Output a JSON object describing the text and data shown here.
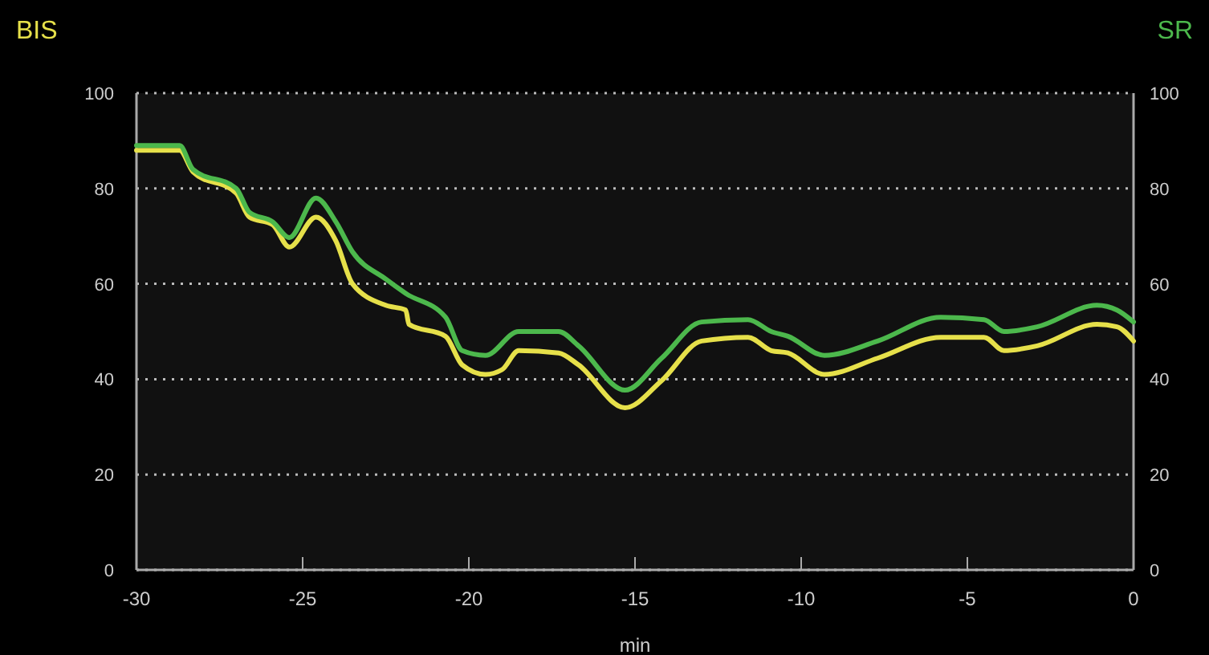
{
  "chart_data": {
    "type": "line",
    "ylabel": "BIS",
    "y2label": "SR",
    "xlabel": "min",
    "xlim": [
      -30,
      0
    ],
    "xticks": [
      -30,
      -25,
      -20,
      -15,
      -10,
      -5,
      0
    ],
    "ylim": [
      0,
      100
    ],
    "yticks": [
      0,
      20,
      40,
      60,
      80,
      100
    ],
    "y2lim": [
      0,
      100
    ],
    "y2ticks": [
      0,
      20,
      40,
      60,
      80,
      100
    ],
    "grid": "y",
    "line_style": "solid",
    "series": [
      {
        "color": "#e6e04a",
        "x": [
          -30,
          -28.7,
          -28.3,
          -27,
          -26.6,
          -25.9,
          -25.4,
          -24.6,
          -24,
          -23.5,
          -22.5,
          -21.9,
          -21.8,
          -20.7,
          -20.2,
          -19.5,
          -19,
          -18.5,
          -17.3,
          -16.7,
          -15.3,
          -14.2,
          -13,
          -11.6,
          -10.9,
          -10.4,
          -9.3,
          -7.7,
          -5.8,
          -4.5,
          -3.9,
          -2.9,
          -1.1,
          -0.5,
          0
        ],
        "values": [
          88,
          88,
          83.5,
          79,
          74,
          72.4,
          67.7,
          74,
          69,
          60,
          55.5,
          54.5,
          51.5,
          49,
          43,
          41,
          42,
          46,
          45.5,
          43,
          34,
          39.7,
          48,
          48.8,
          46,
          45.5,
          41,
          44.4,
          48.8,
          48.8,
          46,
          47,
          51.5,
          51,
          48
        ]
      },
      {
        "color": "#4cb84c",
        "axis": "y2",
        "x": [
          -30,
          -28.7,
          -28.3,
          -27,
          -26.6,
          -25.9,
          -25.4,
          -24.6,
          -24,
          -23.5,
          -22.5,
          -21.9,
          -20.7,
          -20.2,
          -19.5,
          -18.5,
          -17.3,
          -16.7,
          -15.3,
          -14.2,
          -13,
          -11.6,
          -10.9,
          -10.4,
          -9.3,
          -7.7,
          -5.8,
          -4.5,
          -3.9,
          -2.9,
          -1.1,
          -0.5,
          0
        ],
        "values": [
          89,
          89,
          84,
          80,
          75,
          73,
          69.7,
          78,
          73,
          66.7,
          61,
          58,
          53,
          46,
          45,
          50,
          50,
          47,
          37.7,
          44.4,
          52,
          52.5,
          50,
          49,
          45,
          48,
          53,
          52.5,
          50,
          51,
          55.5,
          54.5,
          52
        ]
      }
    ]
  }
}
